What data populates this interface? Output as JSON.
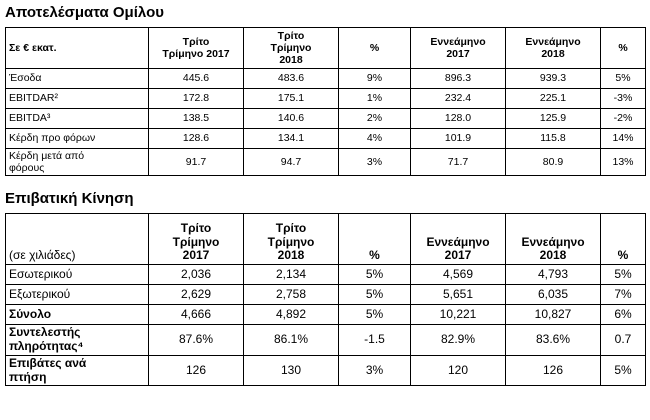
{
  "sections": [
    {
      "title": "Αποτελέσματα Ομίλου",
      "table": {
        "header": [
          "Σε € εκατ.",
          "Τρίτο\nΤρίμηνο 2017",
          "Τρίτο\nΤρίμηνο\n2018",
          "%",
          "Εννεάμηνο\n2017",
          "Εννεάμηνο\n2018",
          "%"
        ],
        "rows": [
          [
            "Έσοδα",
            "445.6",
            "483.6",
            "9%",
            "896.3",
            "939.3",
            "5%"
          ],
          [
            "EBITDAR²",
            "172.8",
            "175.1",
            "1%",
            "232.4",
            "225.1",
            "-3%"
          ],
          [
            "EBITDA³",
            "138.5",
            "140.6",
            "2%",
            "128.0",
            "125.9",
            "-2%"
          ],
          [
            "Κέρδη προ φόρων",
            "128.6",
            "134.1",
            "4%",
            "101.9",
            "115.8",
            "14%"
          ],
          [
            "Κέρδη μετά από\nφόρους",
            "91.7",
            "94.7",
            "3%",
            "71.7",
            "80.9",
            "13%"
          ]
        ]
      }
    },
    {
      "title": "Επιβατική Κίνηση",
      "table": {
        "header": [
          "(σε χιλιάδες)",
          "Τρίτο\nΤρίμηνο\n2017",
          "Τρίτο\nΤρίμηνο\n2018",
          "%",
          "Εννεάμηνο\n2017",
          "Εννεάμηνο\n2018",
          "%"
        ],
        "rows": [
          [
            "Εσωτερικού",
            "2,036",
            "2,134",
            "5%",
            "4,569",
            "4,793",
            "5%"
          ],
          [
            "Εξωτερικού",
            "2,629",
            "2,758",
            "5%",
            "5,651",
            "6,035",
            "7%"
          ],
          [
            "Σύνολο",
            "4,666",
            "4,892",
            "5%",
            "10,221",
            "10,827",
            "6%"
          ],
          [
            "Συντελεστής\nπληρότητας⁴",
            "87.6%",
            "86.1%",
            "-1.5",
            "82.9%",
            "83.6%",
            "0.7"
          ],
          [
            "Επιβάτες ανά\nπτήση",
            "126",
            "130",
            "3%",
            "120",
            "126",
            "5%"
          ]
        ]
      }
    }
  ]
}
